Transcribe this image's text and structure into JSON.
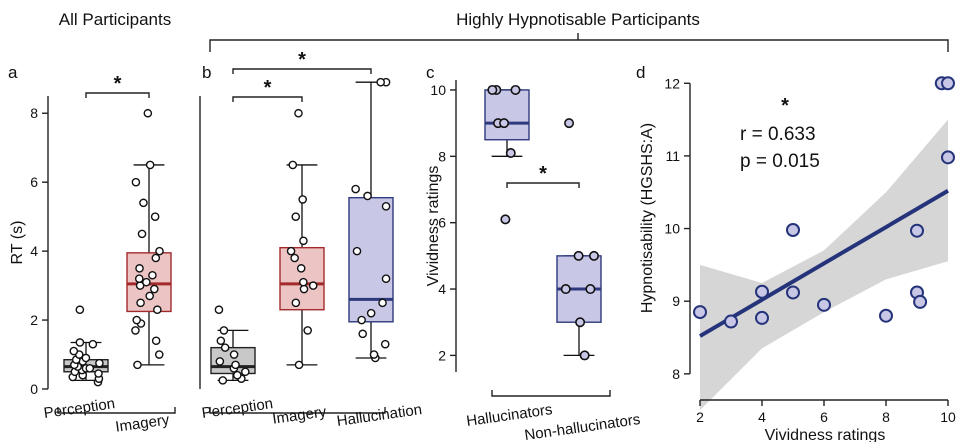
{
  "figure": {
    "header_left": "All Participants",
    "header_right": "Highly Hypnotisable Participants",
    "colors": {
      "perception_fill": "#c8c8c8",
      "perception_line": "#222222",
      "imagery_fill": "#ecc4c4",
      "imagery_line": "#a22a2a",
      "hallucination_fill": "#c9c7e6",
      "hallucination_line": "#2f3a7e",
      "regression_line": "#25347a",
      "ci_band": "#d6d6d6"
    }
  },
  "chart_data": [
    {
      "panel": "a",
      "type": "box",
      "title": "",
      "ylabel": "RT (s)",
      "ylim": [
        0,
        8.5
      ],
      "yticks": [
        "0",
        "2",
        "4",
        "6",
        "8"
      ],
      "ytick_values": [
        0,
        2,
        4,
        6,
        8
      ],
      "categories": [
        "Perception",
        "Imagery"
      ],
      "significance": [
        {
          "from": 0,
          "to": 1,
          "label": "*"
        }
      ],
      "boxes": [
        {
          "name": "Perception",
          "min": 0.25,
          "q1": 0.5,
          "median": 0.65,
          "q3": 0.85,
          "max": 1.35,
          "points": [
            0.2,
            0.3,
            0.35,
            0.4,
            0.45,
            0.5,
            0.55,
            0.6,
            0.6,
            0.65,
            0.7,
            0.75,
            0.8,
            0.85,
            0.9,
            1.0,
            1.1,
            1.3,
            1.35,
            2.3
          ]
        },
        {
          "name": "Imagery",
          "min": 0.7,
          "q1": 2.25,
          "median": 3.05,
          "q3": 3.95,
          "max": 6.5,
          "points": [
            0.7,
            1.0,
            1.4,
            1.7,
            1.9,
            2.0,
            2.3,
            2.5,
            2.7,
            2.9,
            3.0,
            3.1,
            3.2,
            3.3,
            3.5,
            3.8,
            4.0,
            4.5,
            5.0,
            5.4,
            6.0,
            6.5,
            8.0
          ]
        }
      ]
    },
    {
      "panel": "b",
      "type": "box",
      "title": "",
      "ylabel": "",
      "ylim": [
        0,
        8.5
      ],
      "categories": [
        "Perception",
        "Imagery",
        "Hallucination"
      ],
      "significance": [
        {
          "from": 0,
          "to": 1,
          "label": "*"
        },
        {
          "from": 0,
          "to": 2,
          "label": "*"
        }
      ],
      "boxes": [
        {
          "name": "Perception",
          "min": 0.25,
          "q1": 0.45,
          "median": 0.65,
          "q3": 1.2,
          "max": 1.7,
          "points": [
            0.25,
            0.3,
            0.4,
            0.5,
            0.6,
            0.7,
            0.8,
            1.0,
            1.2,
            1.4,
            1.7,
            2.3
          ]
        },
        {
          "name": "Imagery",
          "min": 0.7,
          "q1": 2.3,
          "median": 3.05,
          "q3": 4.1,
          "max": 6.5,
          "points": [
            0.7,
            1.7,
            2.5,
            2.9,
            3.0,
            3.1,
            3.5,
            3.8,
            4.0,
            4.3,
            5.0,
            5.5,
            6.5,
            8.0
          ]
        },
        {
          "name": "Hallucination",
          "min": 0.9,
          "q1": 1.95,
          "median": 2.6,
          "q3": 5.55,
          "max": 8.9,
          "points": [
            0.9,
            1.0,
            1.3,
            1.6,
            2.0,
            2.2,
            2.5,
            3.2,
            4.0,
            5.3,
            5.6,
            5.8,
            8.9,
            8.9
          ]
        }
      ]
    },
    {
      "panel": "c",
      "type": "box",
      "title": "",
      "ylabel": "Vividness ratings",
      "ylim": [
        1.5,
        10.3
      ],
      "yticks": [
        "2",
        "4",
        "6",
        "8",
        "10"
      ],
      "ytick_values": [
        2,
        4,
        6,
        8,
        10
      ],
      "categories": [
        "Hallucinators",
        "Non-hallucinators"
      ],
      "significance": [
        {
          "from": 0,
          "to": 1,
          "label": "*"
        }
      ],
      "boxes": [
        {
          "name": "Hallucinators",
          "min": 8,
          "q1": 8.5,
          "median": 9,
          "q3": 10,
          "max": 10,
          "points": [
            6.1,
            8.1,
            9.0,
            9.0,
            10.0,
            10.0,
            10.0
          ]
        },
        {
          "name": "Non-hallucinators",
          "min": 2,
          "q1": 3,
          "median": 4,
          "q3": 5,
          "max": 5,
          "points": [
            2.0,
            3.0,
            4.0,
            4.0,
            5.0,
            5.0,
            9.0
          ]
        }
      ]
    },
    {
      "panel": "d",
      "type": "scatter",
      "title": "",
      "xlabel": "Vividness ratings",
      "ylabel": "Hypnotisability (HGSHS:A)",
      "xlim": [
        2,
        10
      ],
      "ylim": [
        7.75,
        12.1
      ],
      "xticks": [
        "2",
        "4",
        "6",
        "8",
        "10"
      ],
      "xtick_values": [
        2,
        4,
        6,
        8,
        10
      ],
      "yticks": [
        "8",
        "9",
        "10",
        "11",
        "12"
      ],
      "ytick_values": [
        8,
        9,
        10,
        11,
        12
      ],
      "annotation_r": "r = 0.633",
      "annotation_p": "p = 0.015",
      "significance_label": "*",
      "regression": {
        "x": [
          2,
          10
        ],
        "y": [
          8.52,
          10.52
        ]
      },
      "ci_lower": [
        7.5,
        8.35,
        8.85,
        9.3,
        9.55
      ],
      "ci_upper": [
        9.5,
        9.25,
        9.7,
        10.5,
        11.5
      ],
      "ci_x": [
        2,
        4,
        6,
        8,
        10
      ],
      "points": [
        {
          "x": 2,
          "y": 8.85
        },
        {
          "x": 3,
          "y": 8.72
        },
        {
          "x": 4,
          "y": 9.13
        },
        {
          "x": 4,
          "y": 8.77
        },
        {
          "x": 5,
          "y": 9.98
        },
        {
          "x": 5,
          "y": 9.12
        },
        {
          "x": 6,
          "y": 8.95
        },
        {
          "x": 8,
          "y": 8.8
        },
        {
          "x": 9,
          "y": 9.97
        },
        {
          "x": 9,
          "y": 9.12
        },
        {
          "x": 9.1,
          "y": 8.99
        },
        {
          "x": 9.8,
          "y": 12.0
        },
        {
          "x": 10,
          "y": 12.0
        },
        {
          "x": 10,
          "y": 10.98
        }
      ]
    }
  ]
}
